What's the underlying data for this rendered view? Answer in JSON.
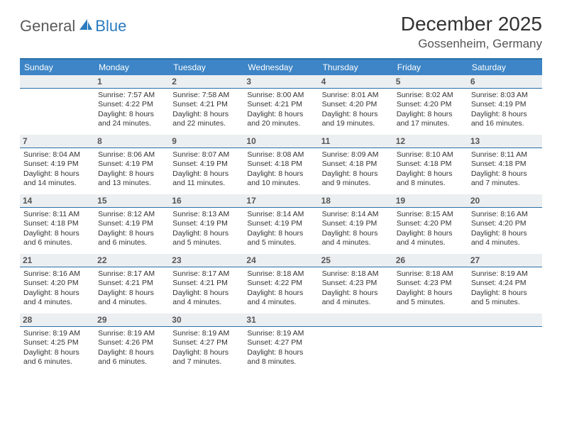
{
  "brand": {
    "part1": "General",
    "part2": "Blue"
  },
  "title": "December 2025",
  "location": "Gossenheim, Germany",
  "colors": {
    "header_bg": "#3d85c6",
    "header_border": "#2a6fa8",
    "daynum_bg": "#eceff1",
    "text": "#333333",
    "brand_gray": "#5a5a5a",
    "brand_blue": "#2b7bbf"
  },
  "weekdays": [
    "Sunday",
    "Monday",
    "Tuesday",
    "Wednesday",
    "Thursday",
    "Friday",
    "Saturday"
  ],
  "weeks": [
    [
      {
        "n": "",
        "sr": "",
        "ss": "",
        "dl": ""
      },
      {
        "n": "1",
        "sr": "Sunrise: 7:57 AM",
        "ss": "Sunset: 4:22 PM",
        "dl": "Daylight: 8 hours and 24 minutes."
      },
      {
        "n": "2",
        "sr": "Sunrise: 7:58 AM",
        "ss": "Sunset: 4:21 PM",
        "dl": "Daylight: 8 hours and 22 minutes."
      },
      {
        "n": "3",
        "sr": "Sunrise: 8:00 AM",
        "ss": "Sunset: 4:21 PM",
        "dl": "Daylight: 8 hours and 20 minutes."
      },
      {
        "n": "4",
        "sr": "Sunrise: 8:01 AM",
        "ss": "Sunset: 4:20 PM",
        "dl": "Daylight: 8 hours and 19 minutes."
      },
      {
        "n": "5",
        "sr": "Sunrise: 8:02 AM",
        "ss": "Sunset: 4:20 PM",
        "dl": "Daylight: 8 hours and 17 minutes."
      },
      {
        "n": "6",
        "sr": "Sunrise: 8:03 AM",
        "ss": "Sunset: 4:19 PM",
        "dl": "Daylight: 8 hours and 16 minutes."
      }
    ],
    [
      {
        "n": "7",
        "sr": "Sunrise: 8:04 AM",
        "ss": "Sunset: 4:19 PM",
        "dl": "Daylight: 8 hours and 14 minutes."
      },
      {
        "n": "8",
        "sr": "Sunrise: 8:06 AM",
        "ss": "Sunset: 4:19 PM",
        "dl": "Daylight: 8 hours and 13 minutes."
      },
      {
        "n": "9",
        "sr": "Sunrise: 8:07 AM",
        "ss": "Sunset: 4:19 PM",
        "dl": "Daylight: 8 hours and 11 minutes."
      },
      {
        "n": "10",
        "sr": "Sunrise: 8:08 AM",
        "ss": "Sunset: 4:18 PM",
        "dl": "Daylight: 8 hours and 10 minutes."
      },
      {
        "n": "11",
        "sr": "Sunrise: 8:09 AM",
        "ss": "Sunset: 4:18 PM",
        "dl": "Daylight: 8 hours and 9 minutes."
      },
      {
        "n": "12",
        "sr": "Sunrise: 8:10 AM",
        "ss": "Sunset: 4:18 PM",
        "dl": "Daylight: 8 hours and 8 minutes."
      },
      {
        "n": "13",
        "sr": "Sunrise: 8:11 AM",
        "ss": "Sunset: 4:18 PM",
        "dl": "Daylight: 8 hours and 7 minutes."
      }
    ],
    [
      {
        "n": "14",
        "sr": "Sunrise: 8:11 AM",
        "ss": "Sunset: 4:18 PM",
        "dl": "Daylight: 8 hours and 6 minutes."
      },
      {
        "n": "15",
        "sr": "Sunrise: 8:12 AM",
        "ss": "Sunset: 4:19 PM",
        "dl": "Daylight: 8 hours and 6 minutes."
      },
      {
        "n": "16",
        "sr": "Sunrise: 8:13 AM",
        "ss": "Sunset: 4:19 PM",
        "dl": "Daylight: 8 hours and 5 minutes."
      },
      {
        "n": "17",
        "sr": "Sunrise: 8:14 AM",
        "ss": "Sunset: 4:19 PM",
        "dl": "Daylight: 8 hours and 5 minutes."
      },
      {
        "n": "18",
        "sr": "Sunrise: 8:14 AM",
        "ss": "Sunset: 4:19 PM",
        "dl": "Daylight: 8 hours and 4 minutes."
      },
      {
        "n": "19",
        "sr": "Sunrise: 8:15 AM",
        "ss": "Sunset: 4:20 PM",
        "dl": "Daylight: 8 hours and 4 minutes."
      },
      {
        "n": "20",
        "sr": "Sunrise: 8:16 AM",
        "ss": "Sunset: 4:20 PM",
        "dl": "Daylight: 8 hours and 4 minutes."
      }
    ],
    [
      {
        "n": "21",
        "sr": "Sunrise: 8:16 AM",
        "ss": "Sunset: 4:20 PM",
        "dl": "Daylight: 8 hours and 4 minutes."
      },
      {
        "n": "22",
        "sr": "Sunrise: 8:17 AM",
        "ss": "Sunset: 4:21 PM",
        "dl": "Daylight: 8 hours and 4 minutes."
      },
      {
        "n": "23",
        "sr": "Sunrise: 8:17 AM",
        "ss": "Sunset: 4:21 PM",
        "dl": "Daylight: 8 hours and 4 minutes."
      },
      {
        "n": "24",
        "sr": "Sunrise: 8:18 AM",
        "ss": "Sunset: 4:22 PM",
        "dl": "Daylight: 8 hours and 4 minutes."
      },
      {
        "n": "25",
        "sr": "Sunrise: 8:18 AM",
        "ss": "Sunset: 4:23 PM",
        "dl": "Daylight: 8 hours and 4 minutes."
      },
      {
        "n": "26",
        "sr": "Sunrise: 8:18 AM",
        "ss": "Sunset: 4:23 PM",
        "dl": "Daylight: 8 hours and 5 minutes."
      },
      {
        "n": "27",
        "sr": "Sunrise: 8:19 AM",
        "ss": "Sunset: 4:24 PM",
        "dl": "Daylight: 8 hours and 5 minutes."
      }
    ],
    [
      {
        "n": "28",
        "sr": "Sunrise: 8:19 AM",
        "ss": "Sunset: 4:25 PM",
        "dl": "Daylight: 8 hours and 6 minutes."
      },
      {
        "n": "29",
        "sr": "Sunrise: 8:19 AM",
        "ss": "Sunset: 4:26 PM",
        "dl": "Daylight: 8 hours and 6 minutes."
      },
      {
        "n": "30",
        "sr": "Sunrise: 8:19 AM",
        "ss": "Sunset: 4:27 PM",
        "dl": "Daylight: 8 hours and 7 minutes."
      },
      {
        "n": "31",
        "sr": "Sunrise: 8:19 AM",
        "ss": "Sunset: 4:27 PM",
        "dl": "Daylight: 8 hours and 8 minutes."
      },
      {
        "n": "",
        "sr": "",
        "ss": "",
        "dl": ""
      },
      {
        "n": "",
        "sr": "",
        "ss": "",
        "dl": ""
      },
      {
        "n": "",
        "sr": "",
        "ss": "",
        "dl": ""
      }
    ]
  ]
}
